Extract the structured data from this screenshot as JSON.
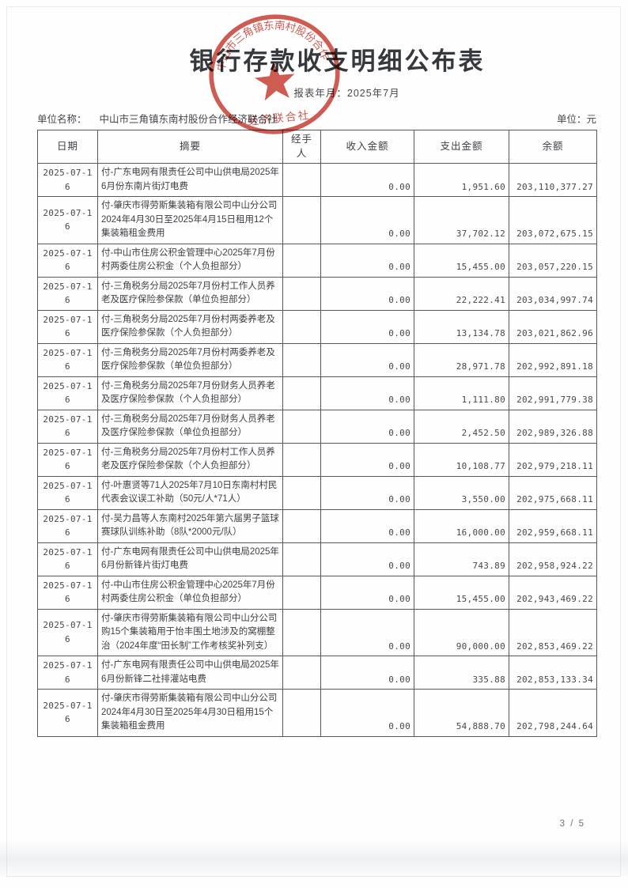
{
  "page": {
    "title": "银行存款收支明细公布表",
    "report_period_label": "报表年月：",
    "report_period": "2025年7月",
    "unit_name_label": "单位名称：",
    "unit_name": "中山市三角镇东南村股份合作经济联合社",
    "unit_label": "单位：元",
    "page_number": "3 / 5"
  },
  "seal": {
    "arc_text": "中山市三角镇东南村股份合作",
    "bottom_text": "经济联合社",
    "color": "#c63d32"
  },
  "table": {
    "headers": [
      "日期",
      "摘要",
      "经手人",
      "收入金额",
      "支出金额",
      "余额"
    ],
    "rows": [
      {
        "date": "2025-07-16",
        "summary": "付-广东电网有限责任公司中山供电局2025年6月份东南片街灯电费",
        "handler": "",
        "income": "0.00",
        "expense": "1,951.60",
        "balance": "203,110,377.27"
      },
      {
        "date": "2025-07-16",
        "summary": "付-肇庆市得劳斯集装箱有限公司中山分公司2024年4月30日至2025年4月15日租用12个集装箱租金费用",
        "handler": "",
        "income": "0.00",
        "expense": "37,702.12",
        "balance": "203,072,675.15"
      },
      {
        "date": "2025-07-16",
        "summary": "付-中山市住房公积金管理中心2025年7月份村两委住房公积金（个人负担部分）",
        "handler": "",
        "income": "0.00",
        "expense": "15,455.00",
        "balance": "203,057,220.15"
      },
      {
        "date": "2025-07-16",
        "summary": "付-三角税务分局2025年7月份村工作人员养老及医疗保险参保款（单位负担部分）",
        "handler": "",
        "income": "0.00",
        "expense": "22,222.41",
        "balance": "203,034,997.74"
      },
      {
        "date": "2025-07-16",
        "summary": "付-三角税务分局2025年7月份村两委养老及医疗保险参保款（个人负担部分）",
        "handler": "",
        "income": "0.00",
        "expense": "13,134.78",
        "balance": "203,021,862.96"
      },
      {
        "date": "2025-07-16",
        "summary": "付-三角税务分局2025年7月份村两委养老及医疗保险参保款（单位负担部分）",
        "handler": "",
        "income": "0.00",
        "expense": "28,971.78",
        "balance": "202,992,891.18"
      },
      {
        "date": "2025-07-16",
        "summary": "付-三角税务分局2025年7月份财务人员养老及医疗保险参保款（个人负担部分）",
        "handler": "",
        "income": "0.00",
        "expense": "1,111.80",
        "balance": "202,991,779.38"
      },
      {
        "date": "2025-07-16",
        "summary": "付-三角税务分局2025年7月份财务人员养老及医疗保险参保款（单位负担部分）",
        "handler": "",
        "income": "0.00",
        "expense": "2,452.50",
        "balance": "202,989,326.88"
      },
      {
        "date": "2025-07-16",
        "summary": "付-三角税务分局2025年7月份村工作人员养老及医疗保险参保款（个人负担部分）",
        "handler": "",
        "income": "0.00",
        "expense": "10,108.77",
        "balance": "202,979,218.11"
      },
      {
        "date": "2025-07-16",
        "summary": "付-叶惠贤等71人2025年7月10日东南村村民代表会议误工补助（50元/人*71人）",
        "handler": "",
        "income": "0.00",
        "expense": "3,550.00",
        "balance": "202,975,668.11"
      },
      {
        "date": "2025-07-16",
        "summary": "付-吴力昌等人东南村2025年第六届男子篮球赛球队训练补助（8队*2000元/队）",
        "handler": "",
        "income": "0.00",
        "expense": "16,000.00",
        "balance": "202,959,668.11"
      },
      {
        "date": "2025-07-16",
        "summary": "付-广东电网有限责任公司中山供电局2025年6月份新锋片街灯电费",
        "handler": "",
        "income": "0.00",
        "expense": "743.89",
        "balance": "202,958,924.22"
      },
      {
        "date": "2025-07-16",
        "summary": "付-中山市住房公积金管理中心2025年7月份村两委住房公积金（单位负担部分）",
        "handler": "",
        "income": "0.00",
        "expense": "15,455.00",
        "balance": "202,943,469.22"
      },
      {
        "date": "2025-07-16",
        "summary": "付-肇庆市得劳斯集装箱有限公司中山分公司购15个集装箱用于怡丰围土地涉及的窝棚整治（2024年度“田长制”工作考核奖补列支）",
        "handler": "",
        "income": "0.00",
        "expense": "90,000.00",
        "balance": "202,853,469.22"
      },
      {
        "date": "2025-07-16",
        "summary": "付-广东电网有限责任公司中山供电局2025年6月份新锋二社排灌站电费",
        "handler": "",
        "income": "0.00",
        "expense": "335.88",
        "balance": "202,853,133.34"
      },
      {
        "date": "2025-07-16",
        "summary": "付-肇庆市得劳斯集装箱有限公司中山分公司2024年4月30日至2025年4月30日租用15个集装箱租金费用",
        "handler": "",
        "income": "0.00",
        "expense": "54,888.70",
        "balance": "202,798,244.64"
      }
    ]
  }
}
